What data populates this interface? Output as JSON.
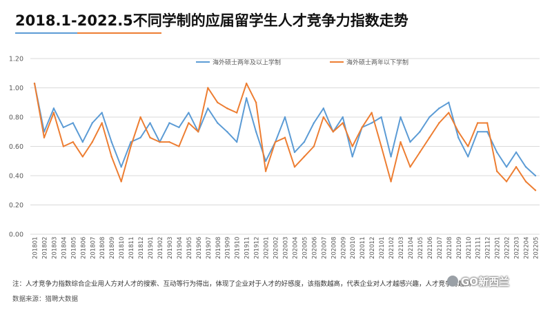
{
  "page": {
    "title": "2018.1-2022.5不同学制的应届留学生人才竞争力指数走势",
    "note": "注：人才竞争力指数综合企业用人方对人才的搜索、互动等行为得出，体现了企业对于人才的好感度，该指数越高，代表企业对人才越感兴趣，人才竞争力越高",
    "source": "数据来源：猎聘大数据",
    "watermark": "GO新西兰"
  },
  "colors": {
    "series_a": "#5b9bd5",
    "series_b": "#ed7d31",
    "grid": "#d9d9d9",
    "tick": "#595959"
  },
  "chart_data": {
    "type": "line",
    "title": "2018.1-2022.5不同学制的应届留学生人才竞争力指数走势",
    "xlabel": "",
    "ylabel": "",
    "ylim": [
      0,
      1.2
    ],
    "yticks": [
      "0.00",
      "0.20",
      "0.40",
      "0.60",
      "0.80",
      "1.00",
      "1.20"
    ],
    "grid": true,
    "legend_position": "top",
    "categories": [
      "201801",
      "201802",
      "201803",
      "201804",
      "201805",
      "201806",
      "201807",
      "201808",
      "201809",
      "201810",
      "201811",
      "201812",
      "201901",
      "201902",
      "201903",
      "201904",
      "201905",
      "201906",
      "201907",
      "201908",
      "201909",
      "201910",
      "201911",
      "201912",
      "202001",
      "202002",
      "202003",
      "202004",
      "202005",
      "202006",
      "202007",
      "202008",
      "202009",
      "202010",
      "202011",
      "202012",
      "202101",
      "202102",
      "202103",
      "202104",
      "202105",
      "202106",
      "202107",
      "202108",
      "202109",
      "202110",
      "202111",
      "202112",
      "202201",
      "202202",
      "202203",
      "202204",
      "202205"
    ],
    "series": [
      {
        "name": "海外硕士两年及以上学制",
        "values": [
          1.03,
          0.7,
          0.86,
          0.73,
          0.76,
          0.63,
          0.76,
          0.83,
          0.63,
          0.46,
          0.63,
          0.66,
          0.76,
          0.63,
          0.76,
          0.73,
          0.83,
          0.7,
          0.86,
          0.76,
          0.7,
          0.63,
          0.93,
          0.7,
          0.5,
          0.63,
          0.8,
          0.56,
          0.63,
          0.76,
          0.86,
          0.7,
          0.8,
          0.53,
          0.73,
          0.76,
          0.8,
          0.53,
          0.8,
          0.63,
          0.7,
          0.8,
          0.86,
          0.9,
          0.66,
          0.53,
          0.7,
          0.7,
          0.56,
          0.46,
          0.56,
          0.46,
          0.4
        ]
      },
      {
        "name": "海外硕士两年以下学制",
        "values": [
          1.03,
          0.66,
          0.83,
          0.6,
          0.63,
          0.53,
          0.63,
          0.76,
          0.53,
          0.36,
          0.6,
          0.8,
          0.66,
          0.63,
          0.63,
          0.6,
          0.76,
          0.7,
          1.0,
          0.9,
          0.86,
          0.83,
          1.03,
          0.9,
          0.43,
          0.63,
          0.66,
          0.46,
          0.53,
          0.6,
          0.8,
          0.7,
          0.76,
          0.6,
          0.73,
          0.83,
          0.6,
          0.36,
          0.63,
          0.46,
          0.56,
          0.66,
          0.76,
          0.83,
          0.7,
          0.6,
          0.76,
          0.76,
          0.43,
          0.36,
          0.46,
          0.36,
          0.3
        ]
      }
    ]
  }
}
